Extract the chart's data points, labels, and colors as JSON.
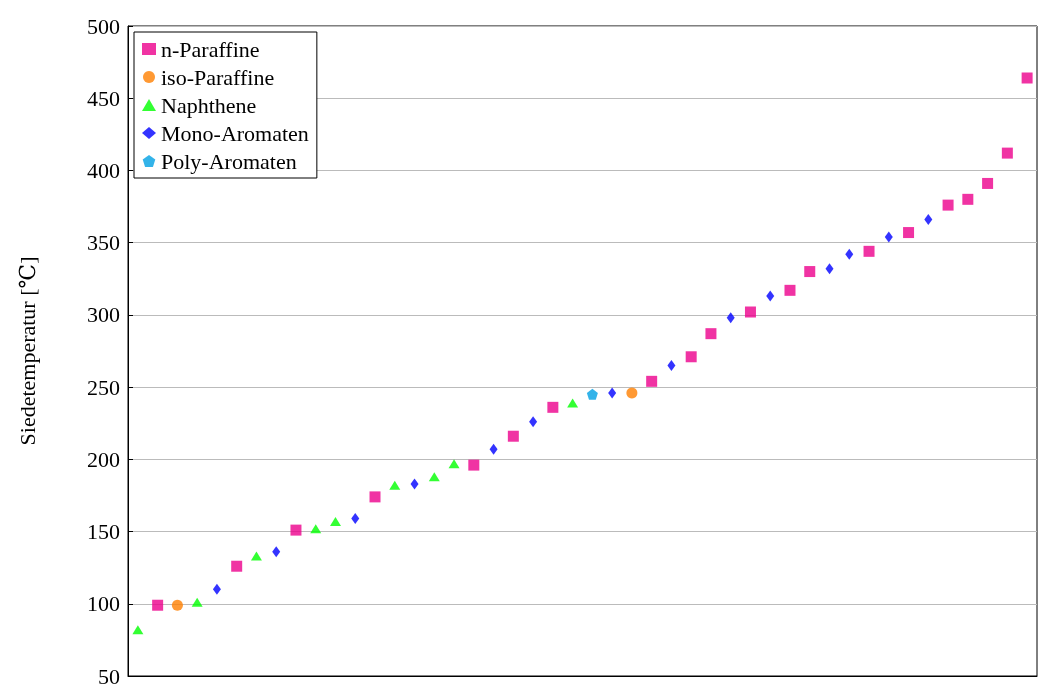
{
  "chart_data": {
    "type": "scatter",
    "ylabel": "Siedetemperatur [℃]",
    "categories": [
      null,
      null,
      null,
      null,
      null,
      null,
      null,
      null,
      null,
      null,
      null,
      null,
      null,
      null,
      null,
      null,
      null,
      null,
      null,
      null,
      null,
      null,
      null,
      null,
      null,
      null,
      null,
      null,
      null,
      null,
      null,
      null,
      null,
      null,
      null,
      null,
      null,
      null,
      null,
      null,
      null,
      null,
      null,
      null,
      null,
      null
    ],
    "ylim": [
      50,
      500
    ],
    "yticks": [
      50,
      100,
      150,
      200,
      250,
      300,
      350,
      400,
      450,
      500
    ],
    "grid": "y",
    "legend": "top left",
    "tick_labels": "y",
    "series": [
      {
        "name": "n-Paraffine",
        "color": "#ec008c",
        "marker": "square",
        "values": [
          null,
          99,
          null,
          null,
          null,
          126,
          null,
          null,
          151,
          null,
          null,
          null,
          174,
          null,
          null,
          null,
          null,
          196,
          null,
          216,
          null,
          236,
          null,
          null,
          null,
          null,
          254,
          null,
          271,
          287,
          null,
          302,
          null,
          317,
          330,
          null,
          null,
          344,
          null,
          357,
          null,
          376,
          380,
          391,
          412,
          464
        ]
      },
      {
        "name": "iso-Paraffine",
        "color": "#ff7f00",
        "marker": "circle",
        "values": [
          null,
          null,
          99,
          null,
          null,
          null,
          null,
          null,
          null,
          null,
          null,
          null,
          null,
          null,
          null,
          null,
          null,
          null,
          null,
          null,
          null,
          null,
          null,
          null,
          null,
          246,
          null,
          null,
          null,
          null,
          null,
          null,
          null,
          null,
          null,
          null,
          null,
          null,
          null,
          null,
          null,
          null,
          null,
          null,
          null,
          null
        ]
      },
      {
        "name": "Naphthene",
        "color": "#00ff00",
        "marker": "triangle",
        "values": [
          82,
          null,
          null,
          101,
          null,
          null,
          133,
          null,
          null,
          152,
          157,
          null,
          null,
          182,
          null,
          188,
          197,
          null,
          null,
          null,
          null,
          null,
          239,
          null,
          null,
          null,
          null,
          null,
          null,
          null,
          null,
          null,
          null,
          null,
          null,
          null,
          null,
          null,
          null,
          null,
          null,
          null,
          null,
          null,
          null,
          null
        ]
      },
      {
        "name": "Mono-Aromaten",
        "color": "#0000ff",
        "marker": "diamond",
        "values": [
          null,
          null,
          null,
          null,
          110,
          null,
          null,
          136,
          null,
          null,
          null,
          159,
          null,
          null,
          183,
          null,
          null,
          null,
          207,
          null,
          226,
          null,
          null,
          null,
          246,
          null,
          null,
          265,
          null,
          null,
          298,
          null,
          313,
          null,
          null,
          332,
          342,
          null,
          354,
          null,
          366,
          null,
          null,
          null,
          null,
          null
        ]
      },
      {
        "name": "Poly-Aromaten",
        "color": "#00a0e3",
        "values": [
          null,
          null,
          null,
          null,
          null,
          null,
          null,
          null,
          null,
          null,
          null,
          null,
          null,
          null,
          null,
          null,
          null,
          null,
          null,
          null,
          null,
          null,
          null,
          245,
          null,
          null,
          null,
          null,
          null,
          null,
          null,
          null,
          null,
          null,
          null,
          null,
          null,
          null,
          null,
          null,
          null,
          null,
          null,
          null,
          null,
          null
        ]
      }
    ]
  }
}
